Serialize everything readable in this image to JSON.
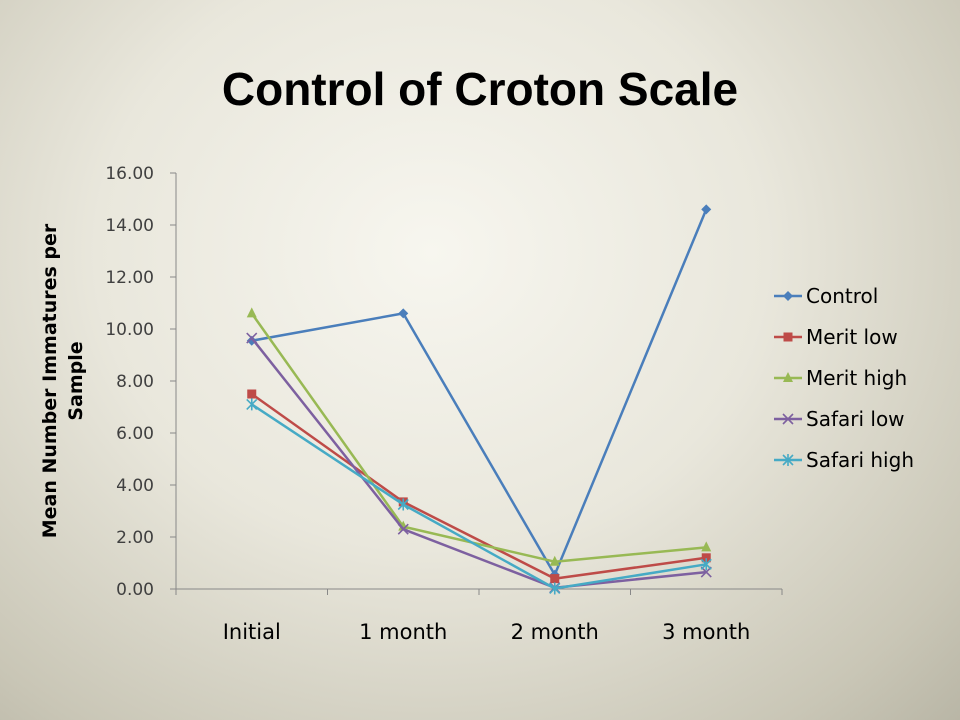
{
  "slide": {
    "title": "Control of Croton Scale"
  },
  "chart_data": {
    "type": "line",
    "title": "",
    "xlabel": "",
    "ylabel_lines": [
      "Mean Number Immatures per",
      "Sample"
    ],
    "ylim": [
      0,
      16
    ],
    "ytick_step": 2,
    "ytick_labels": [
      "0.00",
      "2.00",
      "4.00",
      "6.00",
      "8.00",
      "10.00",
      "12.00",
      "14.00",
      "16.00"
    ],
    "categories": [
      "Initial",
      "1 month",
      "2 month",
      "3 month"
    ],
    "grid": false,
    "legend": "right",
    "series": [
      {
        "name": "Control",
        "color": "#4a7ebb",
        "marker": "diamond",
        "values": [
          9.55,
          10.6,
          0.55,
          14.6
        ]
      },
      {
        "name": "Merit low",
        "color": "#be4b48",
        "marker": "square",
        "values": [
          7.5,
          3.35,
          0.4,
          1.2
        ]
      },
      {
        "name": "Merit high",
        "color": "#98b954",
        "marker": "triangle",
        "values": [
          10.6,
          2.4,
          1.05,
          1.6
        ]
      },
      {
        "name": "Safari low",
        "color": "#7d60a0",
        "marker": "x",
        "values": [
          9.65,
          2.3,
          0.05,
          0.65
        ]
      },
      {
        "name": "Safari high",
        "color": "#46aac5",
        "marker": "star",
        "values": [
          7.1,
          3.25,
          0.02,
          0.95
        ]
      }
    ]
  }
}
